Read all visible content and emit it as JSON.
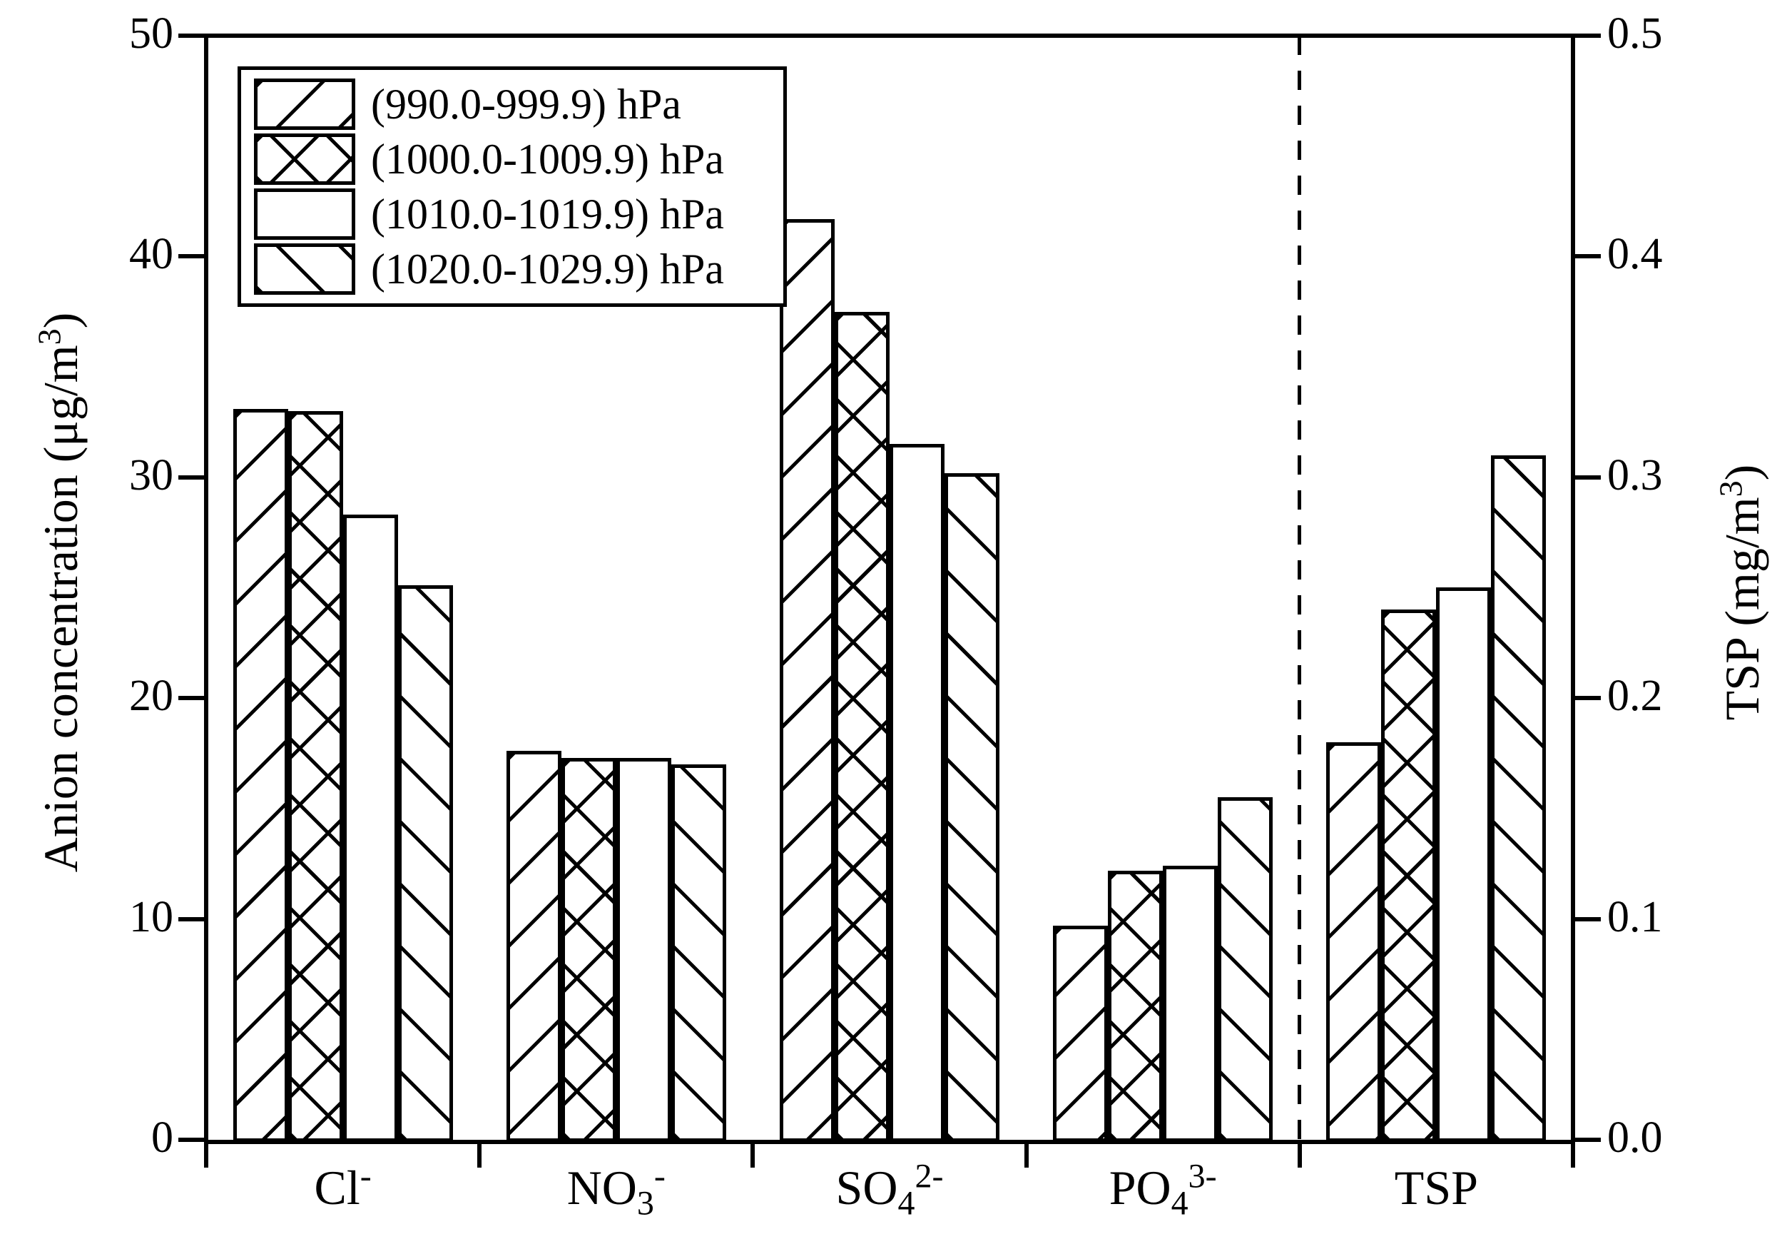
{
  "colors": {
    "foreground": "#000000",
    "background": "#ffffff"
  },
  "chart_data": {
    "type": "bar",
    "title": "",
    "grid": false,
    "legend_position": "upper-left-inside",
    "left_axis": {
      "title_parts": [
        {
          "t": "Anion concentration (μg/m"
        },
        {
          "sup": "3"
        },
        {
          "t": ")"
        }
      ],
      "ticks": [
        "0",
        "10",
        "20",
        "30",
        "40",
        "50"
      ],
      "min": 0,
      "max": 50
    },
    "right_axis": {
      "title_parts": [
        {
          "t": "TSP (mg/m"
        },
        {
          "sup": "3"
        },
        {
          "t": ")"
        }
      ],
      "ticks": [
        "0.0",
        "0.1",
        "0.2",
        "0.3",
        "0.4",
        "0.5"
      ],
      "min": 0,
      "max": 0.5
    },
    "categories": [
      {
        "name": "Cl-",
        "parts": [
          {
            "t": "Cl"
          },
          {
            "sup": "-"
          }
        ]
      },
      {
        "name": "NO3-",
        "parts": [
          {
            "t": "NO"
          },
          {
            "sub": "3"
          },
          {
            "sup": "-"
          }
        ]
      },
      {
        "name": "SO42-",
        "parts": [
          {
            "t": "SO"
          },
          {
            "sub": "4"
          },
          {
            "sup": "2-"
          }
        ]
      },
      {
        "name": "PO43-",
        "parts": [
          {
            "t": "PO"
          },
          {
            "sub": "4"
          },
          {
            "sup": "3-"
          }
        ]
      },
      {
        "name": "TSP",
        "parts": [
          {
            "t": "TSP"
          }
        ]
      }
    ],
    "tsp_category_axis": "right",
    "divider": {
      "style": "dashed",
      "between": [
        "PO43-",
        "TSP"
      ]
    },
    "series": [
      {
        "name": "(990.0-999.9) hPa",
        "hatch": "forward-diagonal",
        "anion_values": [
          33.1,
          17.6,
          41.7,
          9.7
        ],
        "tsp_value": 0.18
      },
      {
        "name": "(1000.0-1009.9) hPa",
        "hatch": "crosshatch",
        "anion_values": [
          33.0,
          17.3,
          37.5,
          12.2
        ],
        "tsp_value": 0.24
      },
      {
        "name": "(1010.0-1019.9) hPa",
        "hatch": "none",
        "anion_values": [
          28.3,
          17.3,
          31.5,
          12.4
        ],
        "tsp_value": 0.25
      },
      {
        "name": "(1020.0-1029.9) hPa",
        "hatch": "backward-diagonal",
        "anion_values": [
          25.1,
          17.0,
          30.2,
          15.5
        ],
        "tsp_value": 0.31
      }
    ]
  }
}
